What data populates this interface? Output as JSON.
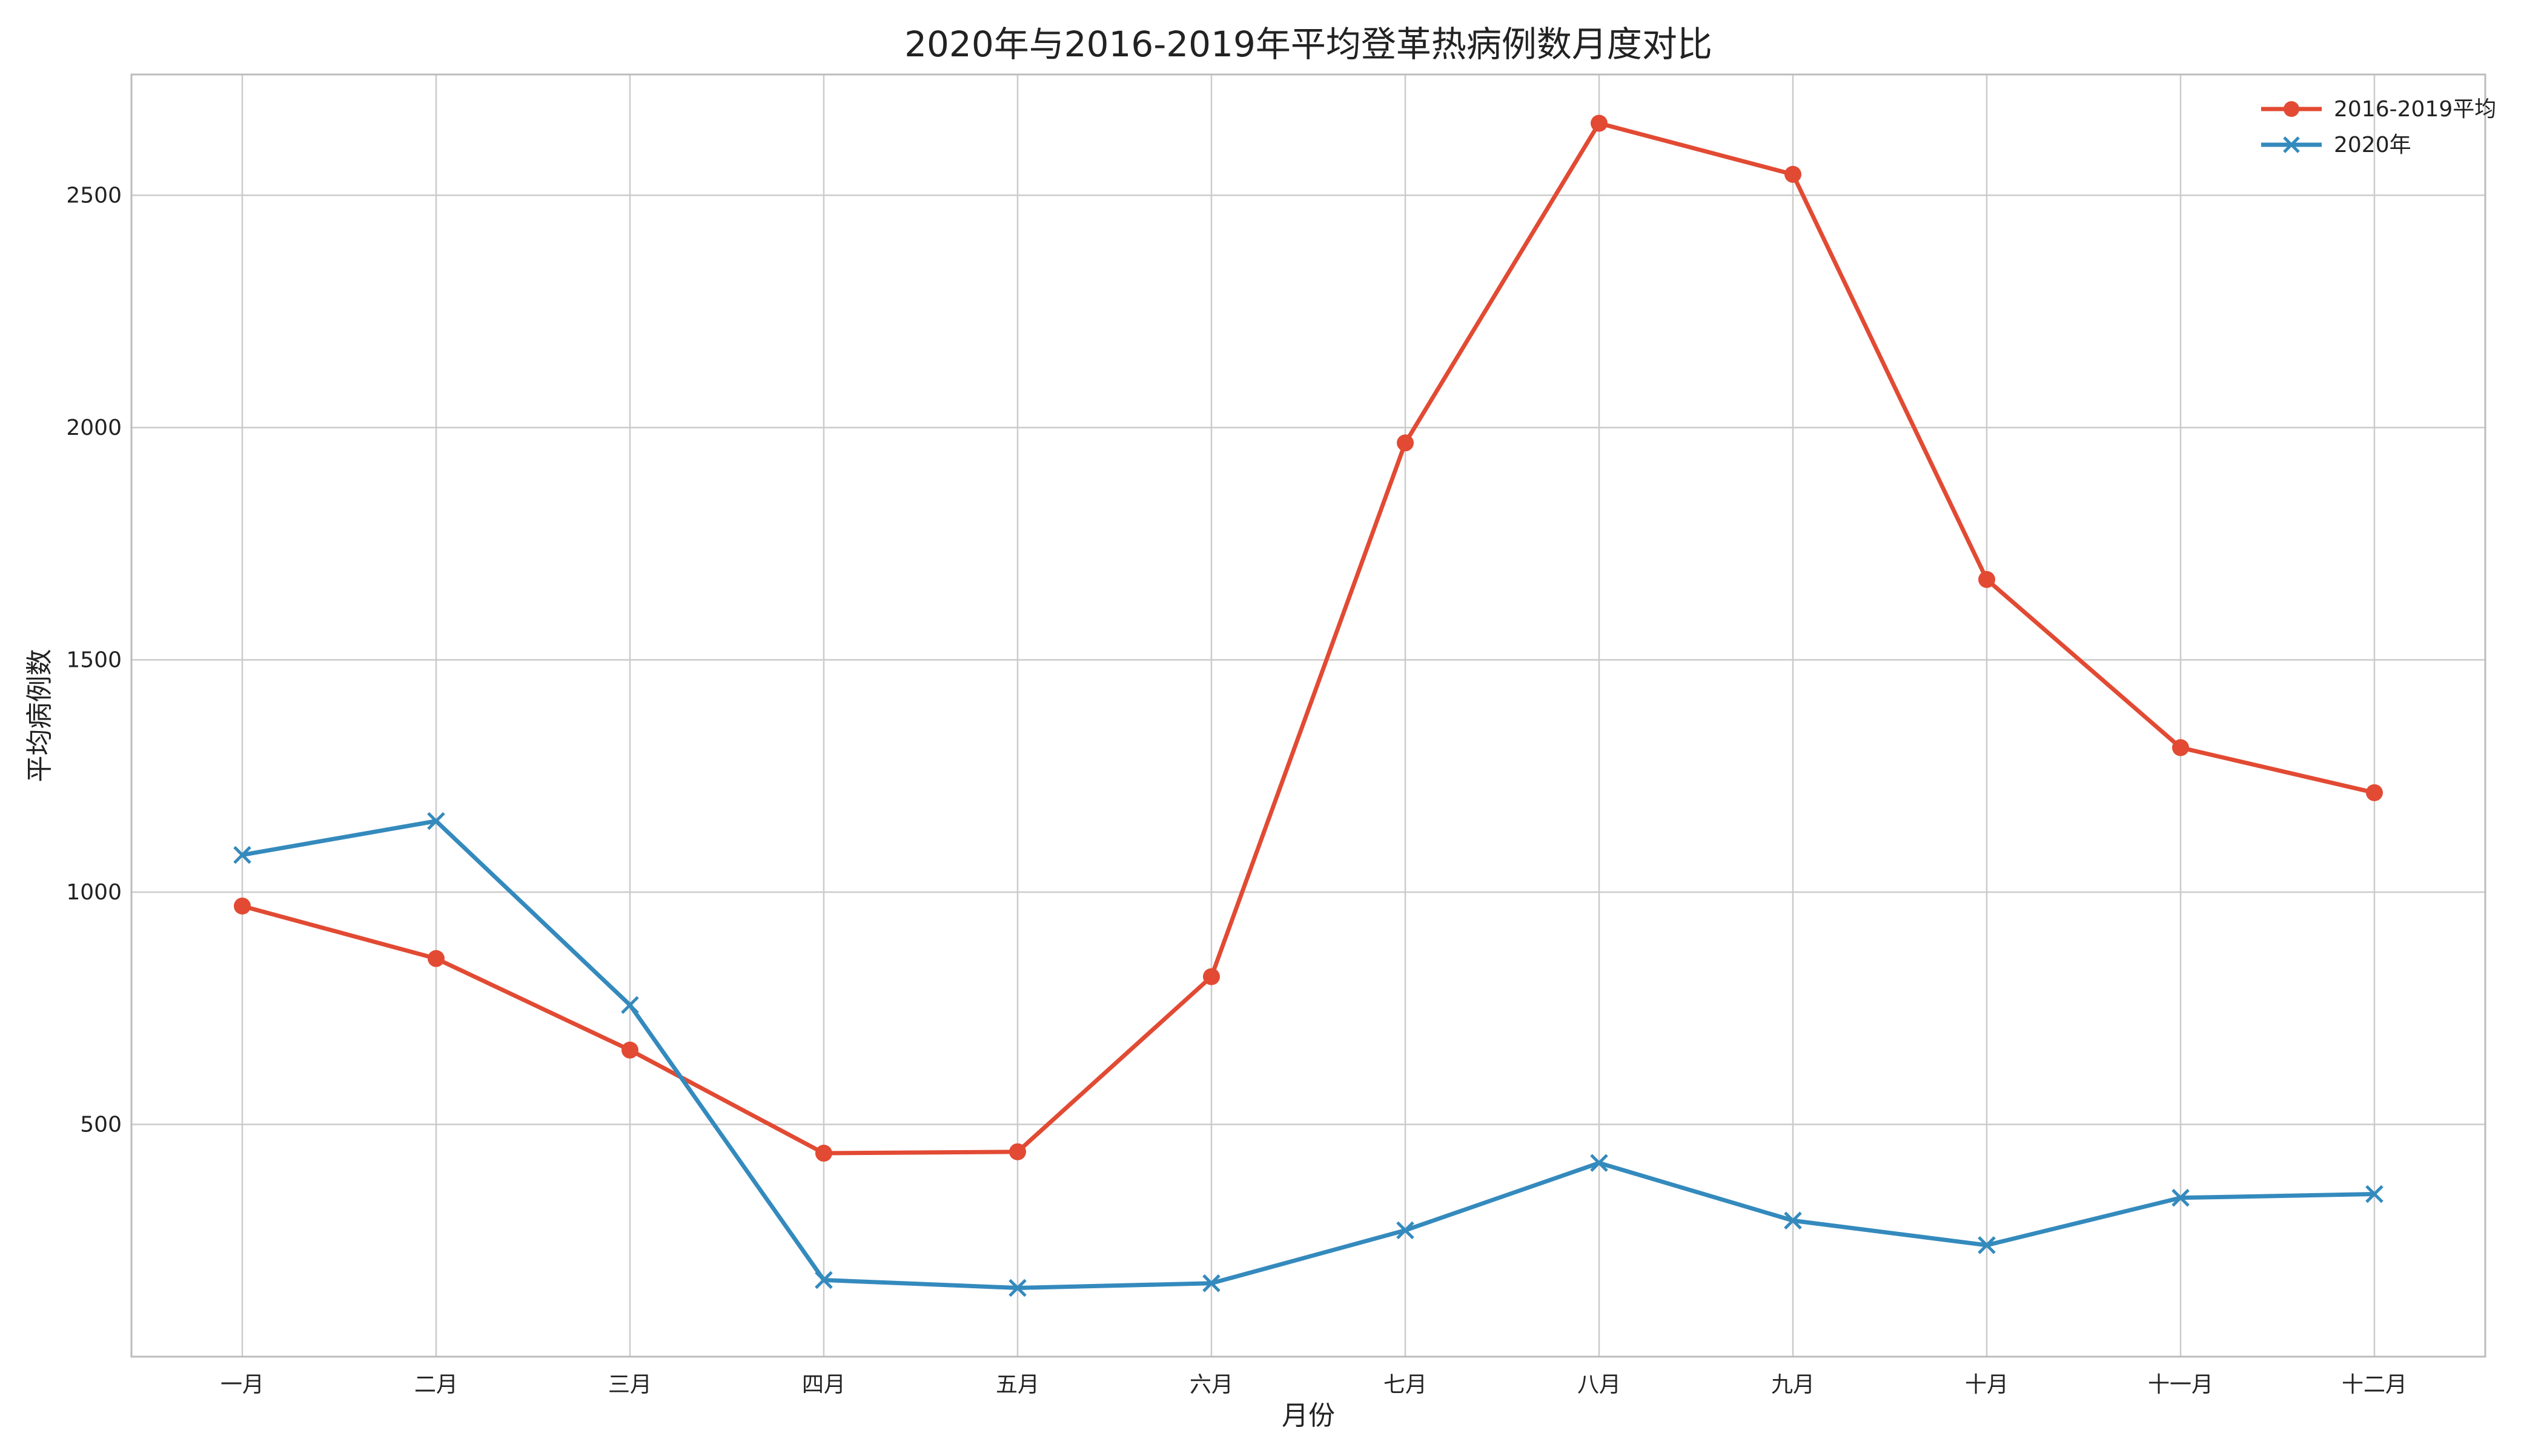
{
  "chart_data": {
    "type": "line",
    "title": "2020年与2016-2019年平均登革热病例数月度对比",
    "xlabel": "月份",
    "ylabel": "平均病例数",
    "categories": [
      "一月",
      "二月",
      "三月",
      "四月",
      "五月",
      "六月",
      "七月",
      "八月",
      "九月",
      "十月",
      "十一月",
      "十二月"
    ],
    "ylim": [
      0,
      2760
    ],
    "yticks": [
      500,
      1000,
      1500,
      2000,
      2500
    ],
    "grid": true,
    "legend_position": "top-right",
    "series": [
      {
        "name": "2016-2019平均",
        "marker": "circle",
        "color": "#E24A33",
        "values": [
          970,
          857,
          660,
          438,
          441,
          818,
          1967,
          2655,
          2545,
          1673,
          1311,
          1214
        ]
      },
      {
        "name": "2020年",
        "marker": "x",
        "color": "#348ABD",
        "values": [
          1080,
          1153,
          757,
          165,
          148,
          158,
          272,
          417,
          293,
          240,
          342,
          350
        ]
      }
    ]
  }
}
